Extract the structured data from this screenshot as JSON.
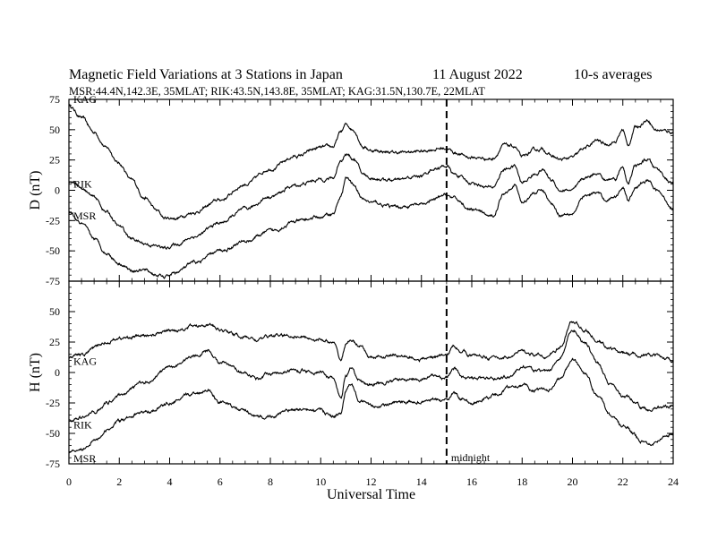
{
  "header": {
    "title": "Magnetic Field Variations at 3 Stations in Japan",
    "date": "11  August  2022",
    "resolution": "10-s averages",
    "stations": "MSR:44.4N,142.3E, 35MLAT;  RIK:43.5N,143.8E, 35MLAT;  KAG:31.5N,130.7E, 22MLAT"
  },
  "chart_data": {
    "type": "line",
    "xlabel": "Universal Time",
    "xlim": [
      0,
      24
    ],
    "xticks": [
      "0",
      "2",
      "4",
      "6",
      "8",
      "10",
      "12",
      "14",
      "16",
      "18",
      "20",
      "22",
      "24"
    ],
    "marker": {
      "x": 15,
      "label": "midnight",
      "style": "dashed"
    },
    "panels": [
      {
        "id": "D",
        "ylabel": "D (nT)",
        "ylim": [
          -75,
          75
        ],
        "yticks": [
          "75",
          "50",
          "25",
          "0",
          "-25",
          "-50",
          "-75"
        ],
        "series": [
          {
            "name": "KAG",
            "x": [
              0,
              0.5,
              1,
              1.5,
              2,
              2.5,
              3,
              3.5,
              3.8,
              4.2,
              5,
              6,
              7,
              8,
              9,
              10,
              10.5,
              10.8,
              11,
              11.3,
              11.7,
              12,
              13,
              14,
              14.5,
              15,
              15.3,
              16,
              16.8,
              17.3,
              17.7,
              18,
              18.5,
              18.8,
              19.2,
              19.5,
              20,
              20.5,
              21,
              21.3,
              21.7,
              22,
              22.2,
              22.5,
              23,
              23.3,
              24
            ],
            "values": [
              70,
              60,
              48,
              35,
              22,
              8,
              -6,
              -17,
              -23,
              -23,
              -18,
              -8,
              5,
              18,
              28,
              35,
              36,
              48,
              54,
              50,
              36,
              33,
              31,
              32,
              34,
              35,
              31,
              27,
              26,
              37,
              36,
              27,
              33,
              34,
              28,
              25,
              27,
              35,
              41,
              38,
              40,
              50,
              37,
              52,
              58,
              50,
              48
            ]
          },
          {
            "name": "RIK",
            "x": [
              0,
              0.5,
              1,
              1.5,
              2,
              2.5,
              3,
              3.5,
              3.8,
              4.2,
              5,
              6,
              7,
              8,
              9,
              10,
              10.5,
              10.8,
              11,
              11.3,
              11.7,
              12,
              13,
              14,
              14.5,
              15,
              15.3,
              16,
              16.8,
              17.3,
              17.7,
              18,
              18.5,
              18.8,
              19.2,
              19.5,
              20,
              20.5,
              21,
              21.3,
              21.7,
              22,
              22.2,
              22.5,
              23,
              23.3,
              24
            ],
            "values": [
              8,
              2,
              -6,
              -18,
              -30,
              -40,
              -44,
              -46,
              -48,
              -45,
              -38,
              -27,
              -16,
              -5,
              4,
              9,
              10,
              25,
              30,
              26,
              13,
              10,
              8,
              12,
              18,
              20,
              13,
              6,
              2,
              17,
              20,
              6,
              13,
              17,
              8,
              0,
              0,
              10,
              15,
              8,
              10,
              20,
              5,
              20,
              25,
              18,
              5
            ]
          },
          {
            "name": "MSR",
            "x": [
              0,
              0.5,
              1,
              1.5,
              2,
              2.5,
              3,
              3.5,
              3.8,
              4.2,
              5,
              6,
              7,
              8,
              9,
              10,
              10.5,
              10.8,
              11,
              11.3,
              11.7,
              12,
              13,
              14,
              14.5,
              15,
              15.3,
              16,
              16.8,
              17.3,
              17.7,
              18,
              18.5,
              18.8,
              19.2,
              19.5,
              20,
              20.5,
              21,
              21.3,
              21.7,
              22,
              22.2,
              22.5,
              23,
              23.3,
              24
            ],
            "values": [
              -18,
              -28,
              -40,
              -52,
              -60,
              -66,
              -66,
              -70,
              -72,
              -68,
              -60,
              -50,
              -42,
              -34,
              -26,
              -22,
              -19,
              -5,
              10,
              5,
              -8,
              -10,
              -14,
              -12,
              -8,
              -4,
              -7,
              -16,
              -22,
              -2,
              5,
              -10,
              -2,
              0,
              -12,
              -20,
              -18,
              -5,
              -2,
              -8,
              -5,
              3,
              -8,
              3,
              8,
              0,
              -14
            ]
          }
        ]
      },
      {
        "id": "H",
        "ylabel": "H (nT)",
        "ylim": [
          -75,
          75
        ],
        "yticks": [
          "50",
          "25",
          "0",
          "-25",
          "-50",
          "-75"
        ],
        "series": [
          {
            "name": "KAG",
            "x": [
              0,
              0.5,
              1,
              1.5,
              2,
              3,
              4,
              5,
              5.5,
              6,
              7,
              7.5,
              8,
              9,
              10,
              10.5,
              10.8,
              11,
              11.2,
              11.5,
              12,
              12.5,
              13,
              14,
              14.5,
              15,
              15.3,
              15.6,
              16,
              17,
              17.5,
              18,
              18.5,
              19,
              19.5,
              20,
              20.5,
              21,
              21.5,
              22,
              23,
              24
            ],
            "values": [
              12,
              14,
              20,
              25,
              28,
              30,
              34,
              38,
              40,
              35,
              29,
              27,
              30,
              30,
              27,
              24,
              10,
              23,
              27,
              22,
              12,
              13,
              14,
              11,
              13,
              14,
              22,
              18,
              14,
              12,
              13,
              17,
              14,
              13,
              20,
              42,
              35,
              25,
              20,
              16,
              14,
              10
            ]
          },
          {
            "name": "RIK",
            "x": [
              0,
              0.5,
              1,
              1.5,
              2,
              3,
              4,
              5,
              5.5,
              6,
              7,
              7.5,
              8,
              9,
              10,
              10.5,
              10.8,
              11,
              11.2,
              11.5,
              12,
              12.5,
              13,
              14,
              14.5,
              15,
              15.3,
              15.6,
              16,
              17,
              17.5,
              18,
              18.5,
              19,
              19.5,
              20,
              20.5,
              21,
              21.5,
              22,
              23,
              24
            ],
            "values": [
              -40,
              -37,
              -33,
              -25,
              -18,
              -8,
              4,
              14,
              18,
              8,
              0,
              -5,
              0,
              2,
              0,
              -5,
              -22,
              -3,
              3,
              -6,
              -10,
              -8,
              -6,
              -5,
              -3,
              -4,
              3,
              -3,
              -5,
              -5,
              -3,
              5,
              2,
              0,
              12,
              35,
              25,
              8,
              -10,
              -20,
              -30,
              -27
            ]
          },
          {
            "name": "MSR",
            "x": [
              0,
              0.5,
              1,
              1.5,
              2,
              3,
              4,
              5,
              5.5,
              6,
              7,
              7.5,
              8,
              9,
              10,
              10.5,
              10.8,
              11,
              11.2,
              11.5,
              12,
              12.5,
              13,
              14,
              14.5,
              15,
              15.3,
              15.6,
              16,
              17,
              17.5,
              18,
              18.5,
              19,
              19.5,
              20,
              20.5,
              21,
              21.5,
              22,
              23,
              24
            ],
            "values": [
              -65,
              -62,
              -56,
              -48,
              -40,
              -33,
              -25,
              -17,
              -14,
              -24,
              -32,
              -37,
              -36,
              -30,
              -32,
              -36,
              -34,
              -15,
              -10,
              -22,
              -28,
              -27,
              -25,
              -24,
              -22,
              -24,
              -17,
              -22,
              -25,
              -18,
              -12,
              -10,
              -15,
              -14,
              -5,
              10,
              0,
              -18,
              -35,
              -45,
              -58,
              -50
            ]
          }
        ]
      }
    ]
  }
}
